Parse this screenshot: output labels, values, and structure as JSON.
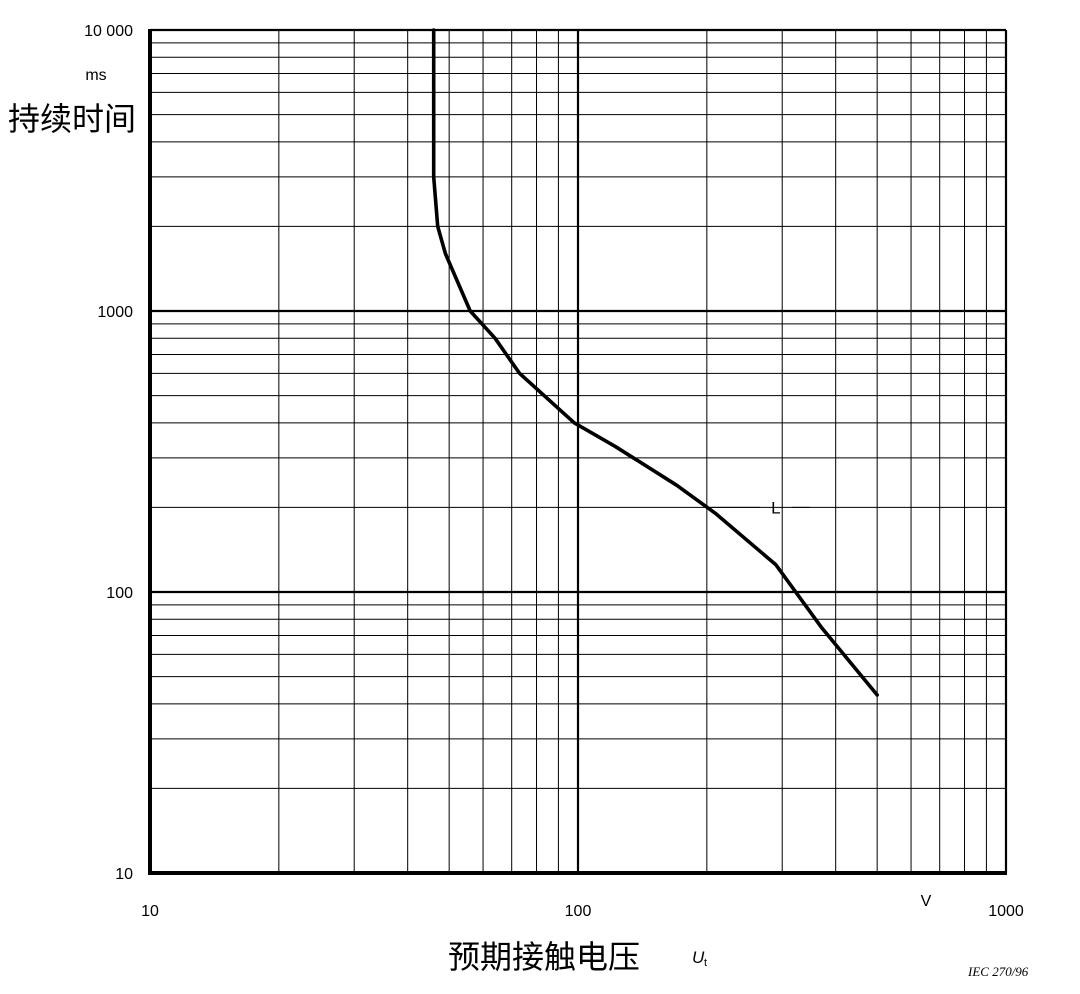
{
  "chart_data": {
    "type": "line",
    "x_scale": "log",
    "y_scale": "log",
    "xlim": [
      10,
      1000
    ],
    "ylim": [
      10,
      10000
    ],
    "grid": true,
    "x_ticks": [
      {
        "value": 10,
        "label": "10"
      },
      {
        "value": 100,
        "label": "100"
      },
      {
        "value": 1000,
        "label": "1000"
      }
    ],
    "y_ticks": [
      {
        "value": 10,
        "label": "10"
      },
      {
        "value": 100,
        "label": "100"
      },
      {
        "value": 1000,
        "label": "1000"
      },
      {
        "value": 10000,
        "label": "10 000"
      }
    ],
    "x_unit": "V",
    "y_unit": "ms",
    "xlabel": "预期接触电压",
    "xlabel_symbol": "U",
    "xlabel_symbol_subscript": "t",
    "ylabel": "持续时间",
    "series": [
      {
        "name": "L",
        "x": [
          46,
          46,
          47,
          49,
          56,
          64,
          73,
          98,
          122,
          170,
          210,
          290,
          370,
          500
        ],
        "y": [
          10000,
          3000,
          2000,
          1600,
          1000,
          800,
          600,
          400,
          330,
          240,
          190,
          125,
          75,
          43
        ]
      }
    ],
    "source": "IEC  270/96"
  }
}
